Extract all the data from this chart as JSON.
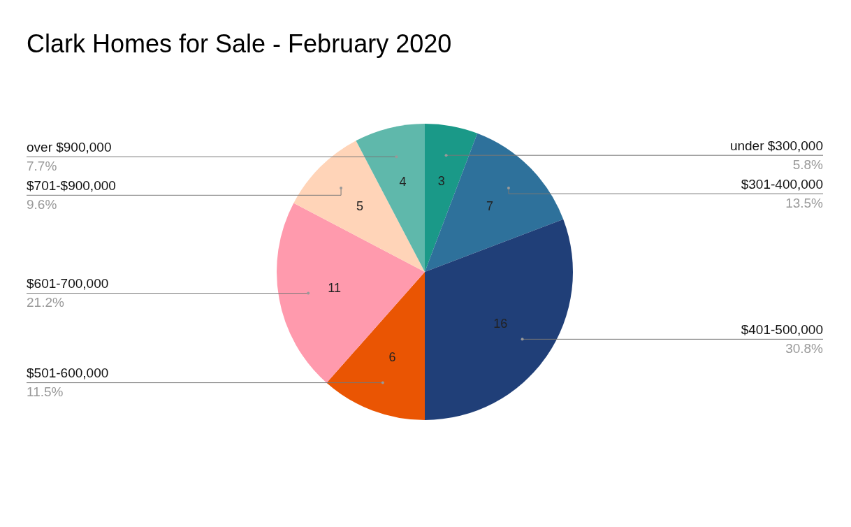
{
  "chart_data": {
    "type": "pie",
    "title": "Clark Homes for Sale - February 2020",
    "categories": [
      "under $300,000",
      "$301-400,000",
      "$401-500,000",
      "$501-600,000",
      "$601-700,000",
      "$701-$900,000",
      "over $900,000"
    ],
    "values": [
      3,
      7,
      16,
      6,
      11,
      5,
      4
    ],
    "colors": [
      "#1a9988",
      "#2e719b",
      "#203f78",
      "#ea5503",
      "#ff9aad",
      "#ffd4b8",
      "#5fb8ab"
    ],
    "data_labels": true,
    "annotations": [
      "5.8%",
      "13.5%",
      "30.8%",
      "11.5%",
      "21.2%",
      "9.6%",
      "7.7%"
    ],
    "legend": false
  }
}
